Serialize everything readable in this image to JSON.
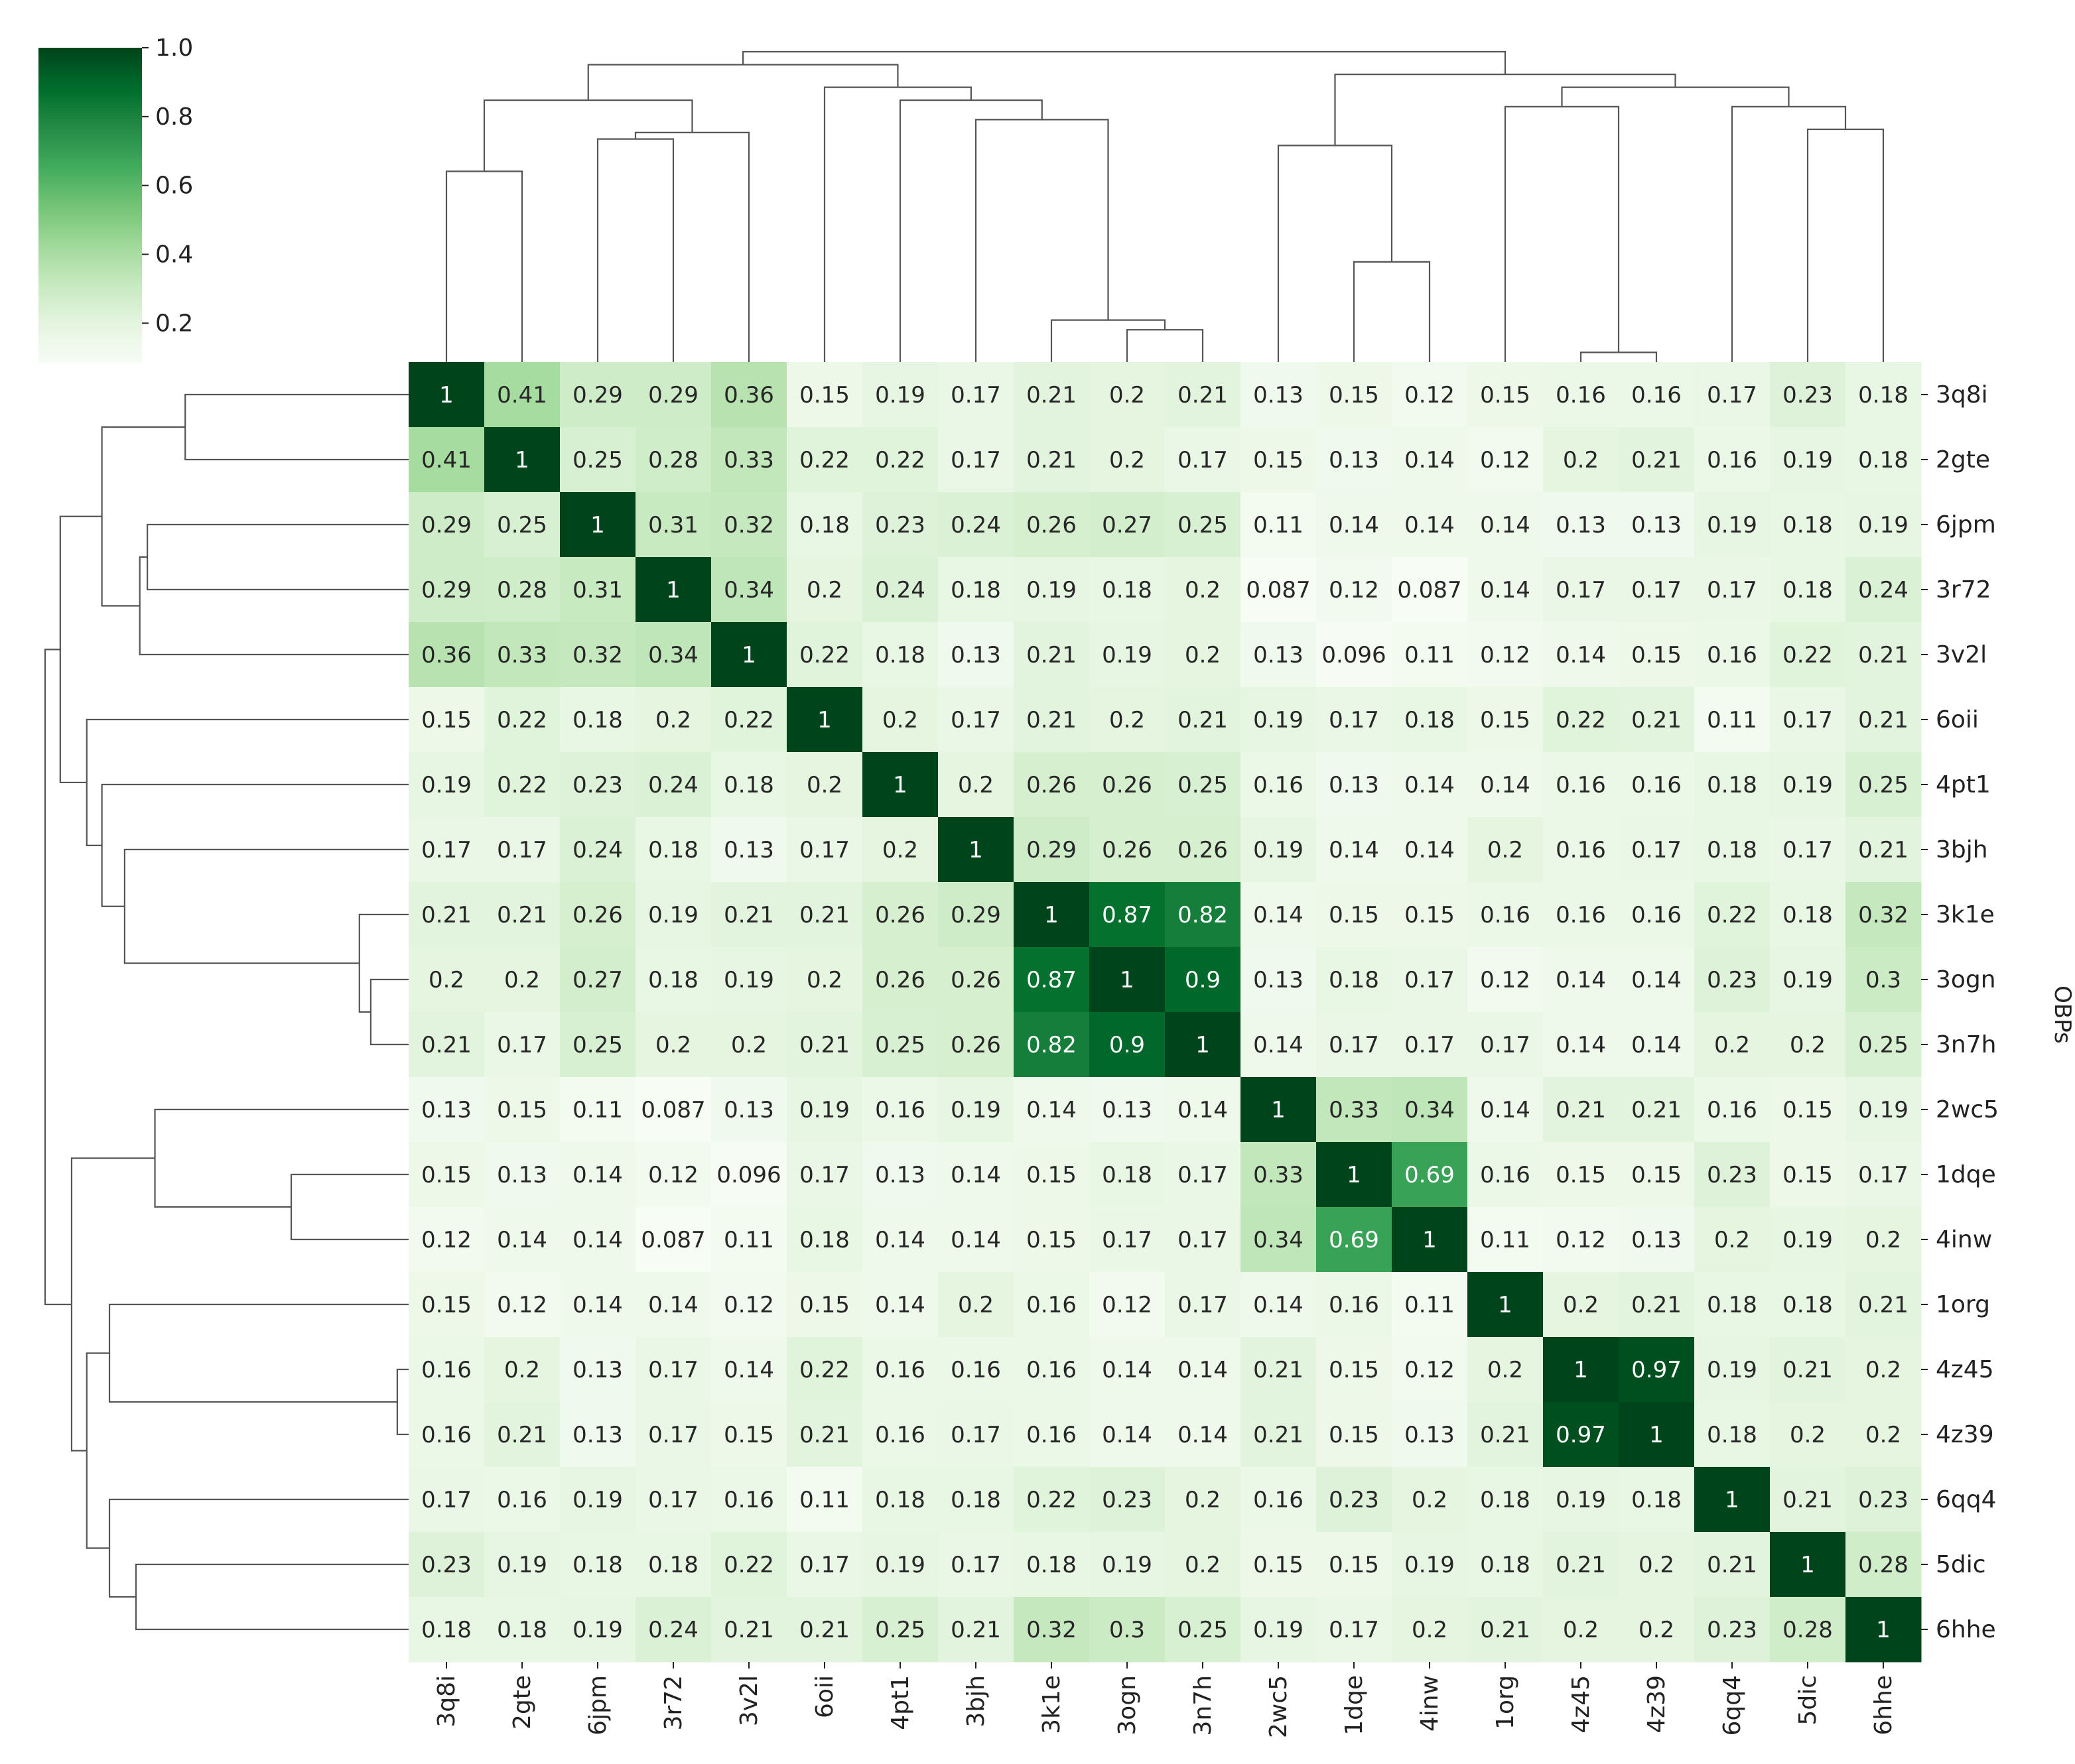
{
  "chart_data": {
    "type": "heatmap",
    "subtype": "clustermap",
    "title": "",
    "xlabel": "",
    "ylabel": "OBPs",
    "labels": [
      "3q8i",
      "2gte",
      "6jpm",
      "3r72",
      "3v2l",
      "6oii",
      "4pt1",
      "3bjh",
      "3k1e",
      "3ogn",
      "3n7h",
      "2wc5",
      "1dqe",
      "4inw",
      "1org",
      "4z45",
      "4z39",
      "6qq4",
      "5dic",
      "6hhe"
    ],
    "cell_text": [
      [
        "1",
        "0.41",
        "0.29",
        "0.29",
        "0.36",
        "0.15",
        "0.19",
        "0.17",
        "0.21",
        "0.2",
        "0.21",
        "0.13",
        "0.15",
        "0.12",
        "0.15",
        "0.16",
        "0.16",
        "0.17",
        "0.23",
        "0.18"
      ],
      [
        "0.41",
        "1",
        "0.25",
        "0.28",
        "0.33",
        "0.22",
        "0.22",
        "0.17",
        "0.21",
        "0.2",
        "0.17",
        "0.15",
        "0.13",
        "0.14",
        "0.12",
        "0.2",
        "0.21",
        "0.16",
        "0.19",
        "0.18"
      ],
      [
        "0.29",
        "0.25",
        "1",
        "0.31",
        "0.32",
        "0.18",
        "0.23",
        "0.24",
        "0.26",
        "0.27",
        "0.25",
        "0.11",
        "0.14",
        "0.14",
        "0.14",
        "0.13",
        "0.13",
        "0.19",
        "0.18",
        "0.19"
      ],
      [
        "0.29",
        "0.28",
        "0.31",
        "1",
        "0.34",
        "0.2",
        "0.24",
        "0.18",
        "0.19",
        "0.18",
        "0.2",
        "0.087",
        "0.12",
        "0.087",
        "0.14",
        "0.17",
        "0.17",
        "0.17",
        "0.18",
        "0.24"
      ],
      [
        "0.36",
        "0.33",
        "0.32",
        "0.34",
        "1",
        "0.22",
        "0.18",
        "0.13",
        "0.21",
        "0.19",
        "0.2",
        "0.13",
        "0.096",
        "0.11",
        "0.12",
        "0.14",
        "0.15",
        "0.16",
        "0.22",
        "0.21"
      ],
      [
        "0.15",
        "0.22",
        "0.18",
        "0.2",
        "0.22",
        "1",
        "0.2",
        "0.17",
        "0.21",
        "0.2",
        "0.21",
        "0.19",
        "0.17",
        "0.18",
        "0.15",
        "0.22",
        "0.21",
        "0.11",
        "0.17",
        "0.21"
      ],
      [
        "0.19",
        "0.22",
        "0.23",
        "0.24",
        "0.18",
        "0.2",
        "1",
        "0.2",
        "0.26",
        "0.26",
        "0.25",
        "0.16",
        "0.13",
        "0.14",
        "0.14",
        "0.16",
        "0.16",
        "0.18",
        "0.19",
        "0.25"
      ],
      [
        "0.17",
        "0.17",
        "0.24",
        "0.18",
        "0.13",
        "0.17",
        "0.2",
        "1",
        "0.29",
        "0.26",
        "0.26",
        "0.19",
        "0.14",
        "0.14",
        "0.2",
        "0.16",
        "0.17",
        "0.18",
        "0.17",
        "0.21"
      ],
      [
        "0.21",
        "0.21",
        "0.26",
        "0.19",
        "0.21",
        "0.21",
        "0.26",
        "0.29",
        "1",
        "0.87",
        "0.82",
        "0.14",
        "0.15",
        "0.15",
        "0.16",
        "0.16",
        "0.16",
        "0.22",
        "0.18",
        "0.32"
      ],
      [
        "0.2",
        "0.2",
        "0.27",
        "0.18",
        "0.19",
        "0.2",
        "0.26",
        "0.26",
        "0.87",
        "1",
        "0.9",
        "0.13",
        "0.18",
        "0.17",
        "0.12",
        "0.14",
        "0.14",
        "0.23",
        "0.19",
        "0.3"
      ],
      [
        "0.21",
        "0.17",
        "0.25",
        "0.2",
        "0.2",
        "0.21",
        "0.25",
        "0.26",
        "0.82",
        "0.9",
        "1",
        "0.14",
        "0.17",
        "0.17",
        "0.17",
        "0.14",
        "0.14",
        "0.2",
        "0.2",
        "0.25"
      ],
      [
        "0.13",
        "0.15",
        "0.11",
        "0.087",
        "0.13",
        "0.19",
        "0.16",
        "0.19",
        "0.14",
        "0.13",
        "0.14",
        "1",
        "0.33",
        "0.34",
        "0.14",
        "0.21",
        "0.21",
        "0.16",
        "0.15",
        "0.19"
      ],
      [
        "0.15",
        "0.13",
        "0.14",
        "0.12",
        "0.096",
        "0.17",
        "0.13",
        "0.14",
        "0.15",
        "0.18",
        "0.17",
        "0.33",
        "1",
        "0.69",
        "0.16",
        "0.15",
        "0.15",
        "0.23",
        "0.15",
        "0.17"
      ],
      [
        "0.12",
        "0.14",
        "0.14",
        "0.087",
        "0.11",
        "0.18",
        "0.14",
        "0.14",
        "0.15",
        "0.17",
        "0.17",
        "0.34",
        "0.69",
        "1",
        "0.11",
        "0.12",
        "0.13",
        "0.2",
        "0.19",
        "0.2"
      ],
      [
        "0.15",
        "0.12",
        "0.14",
        "0.14",
        "0.12",
        "0.15",
        "0.14",
        "0.2",
        "0.16",
        "0.12",
        "0.17",
        "0.14",
        "0.16",
        "0.11",
        "1",
        "0.2",
        "0.21",
        "0.18",
        "0.18",
        "0.21"
      ],
      [
        "0.16",
        "0.2",
        "0.13",
        "0.17",
        "0.14",
        "0.22",
        "0.16",
        "0.16",
        "0.16",
        "0.14",
        "0.14",
        "0.21",
        "0.15",
        "0.12",
        "0.2",
        "1",
        "0.97",
        "0.19",
        "0.21",
        "0.2"
      ],
      [
        "0.16",
        "0.21",
        "0.13",
        "0.17",
        "0.15",
        "0.21",
        "0.16",
        "0.17",
        "0.16",
        "0.14",
        "0.14",
        "0.21",
        "0.15",
        "0.13",
        "0.21",
        "0.97",
        "1",
        "0.18",
        "0.2",
        "0.2"
      ],
      [
        "0.17",
        "0.16",
        "0.19",
        "0.17",
        "0.16",
        "0.11",
        "0.18",
        "0.18",
        "0.22",
        "0.23",
        "0.2",
        "0.16",
        "0.23",
        "0.2",
        "0.18",
        "0.19",
        "0.18",
        "1",
        "0.21",
        "0.23"
      ],
      [
        "0.23",
        "0.19",
        "0.18",
        "0.18",
        "0.22",
        "0.17",
        "0.19",
        "0.17",
        "0.18",
        "0.19",
        "0.2",
        "0.15",
        "0.15",
        "0.19",
        "0.18",
        "0.21",
        "0.2",
        "0.21",
        "1",
        "0.28"
      ],
      [
        "0.18",
        "0.18",
        "0.19",
        "0.24",
        "0.21",
        "0.21",
        "0.25",
        "0.21",
        "0.32",
        "0.3",
        "0.25",
        "0.19",
        "0.17",
        "0.2",
        "0.21",
        "0.2",
        "0.2",
        "0.23",
        "0.28",
        "1"
      ]
    ],
    "colorbar": {
      "ticks": [
        "1.0",
        "0.8",
        "0.6",
        "0.4",
        "0.2"
      ],
      "tick_values": [
        1.0,
        0.8,
        0.6,
        0.4,
        0.2
      ],
      "range": [
        0.087,
        1.0
      ],
      "colormap": "Greens"
    },
    "dendrogram": {
      "linkage": [
        [
          9,
          10,
          0.1
        ],
        [
          8,
          20,
          0.13
        ],
        [
          15,
          16,
          0.03
        ],
        [
          12,
          13,
          0.31
        ],
        [
          0,
          1,
          0.59
        ],
        [
          2,
          3,
          0.69
        ],
        [
          19,
          18,
          0.72
        ],
        [
          4,
          25,
          0.71
        ],
        [
          7,
          21,
          0.75
        ],
        [
          17,
          26,
          0.79
        ],
        [
          14,
          22,
          0.79
        ],
        [
          11,
          23,
          0.67
        ],
        [
          24,
          27,
          0.81
        ],
        [
          30,
          29,
          0.85
        ],
        [
          6,
          28,
          0.81
        ],
        [
          5,
          34,
          0.85
        ],
        [
          31,
          33,
          0.89
        ],
        [
          32,
          35,
          0.92
        ],
        [
          37,
          36,
          0.96
        ]
      ]
    }
  }
}
